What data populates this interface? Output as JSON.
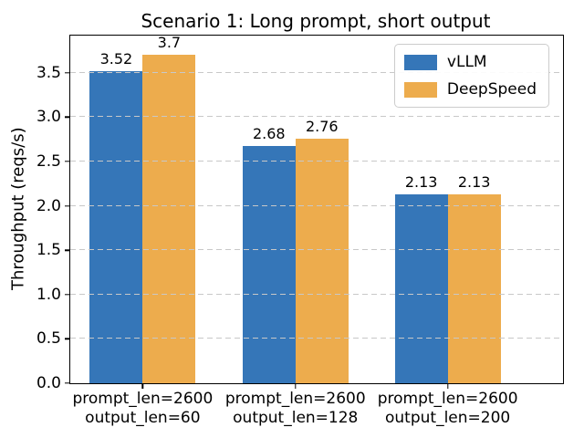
{
  "chart_data": {
    "type": "bar",
    "title": "Scenario 1: Long prompt, short output",
    "xlabel": "",
    "ylabel": "Throughput (reqs/s)",
    "categories": [
      [
        "prompt_len=2600",
        "output_len=60"
      ],
      [
        "prompt_len=2600",
        "output_len=128"
      ],
      [
        "prompt_len=2600",
        "output_len=200"
      ]
    ],
    "series": [
      {
        "name": "vLLM",
        "color": "#3576B8",
        "values": [
          3.52,
          2.68,
          2.13
        ],
        "bar_labels": [
          "3.52",
          "2.68",
          "2.13"
        ]
      },
      {
        "name": "DeepSpeed",
        "color": "#EDAC4D",
        "values": [
          3.7,
          2.76,
          2.13
        ],
        "bar_labels": [
          "3.7",
          "2.76",
          "2.13"
        ]
      }
    ],
    "ylim": [
      0,
      3.92
    ],
    "yticks": [
      0.0,
      0.5,
      1.0,
      1.5,
      2.0,
      2.5,
      3.0,
      3.5
    ],
    "ytick_labels": [
      "0.0",
      "0.5",
      "1.0",
      "1.5",
      "2.0",
      "2.5",
      "3.0",
      "3.5"
    ],
    "grid": {
      "axis": "y",
      "style": "dashed",
      "color": "#C8C8C8",
      "drawn_above_bars": true
    },
    "legend": {
      "position": "upper right",
      "entries": [
        "vLLM",
        "DeepSpeed"
      ]
    },
    "frame_color": "#000000",
    "background_color": "#FFFFFF"
  }
}
